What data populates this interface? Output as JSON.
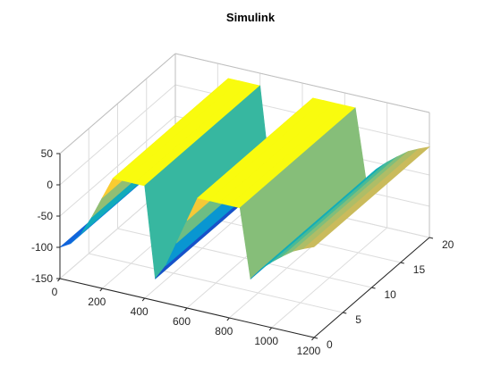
{
  "chart_data": {
    "type": "surface",
    "title": "Simulink",
    "xlabel": "",
    "ylabel": "",
    "zlabel": "",
    "xlim": [
      0,
      1200
    ],
    "ylim": [
      0,
      20
    ],
    "zlim": [
      -150,
      50
    ],
    "x_ticks": [
      "0",
      "200",
      "400",
      "600",
      "800",
      "1000",
      "1200"
    ],
    "y_ticks": [
      "0",
      "5",
      "10",
      "15",
      "20"
    ],
    "z_ticks": [
      "-150",
      "-100",
      "-50",
      "0",
      "50"
    ],
    "grid": true,
    "colormap": "parula",
    "x_samples": [
      0,
      50,
      100,
      150,
      200,
      250,
      300,
      350,
      400,
      450,
      500,
      550,
      600,
      650,
      700,
      750,
      800,
      850,
      900,
      950,
      1000,
      1050,
      1100,
      1150,
      1200
    ],
    "z_profile": [
      -100,
      -90,
      -70,
      -40,
      -5,
      30,
      30,
      30,
      30,
      -115,
      -90,
      -50,
      -10,
      30,
      30,
      30,
      30,
      30,
      -80,
      -60,
      -45,
      -32,
      -20,
      -12,
      -5
    ],
    "y_range": [
      0,
      20
    ]
  },
  "colors": {
    "axis": "#262626",
    "grid": "#dcdcdc",
    "background": "#ffffff"
  }
}
